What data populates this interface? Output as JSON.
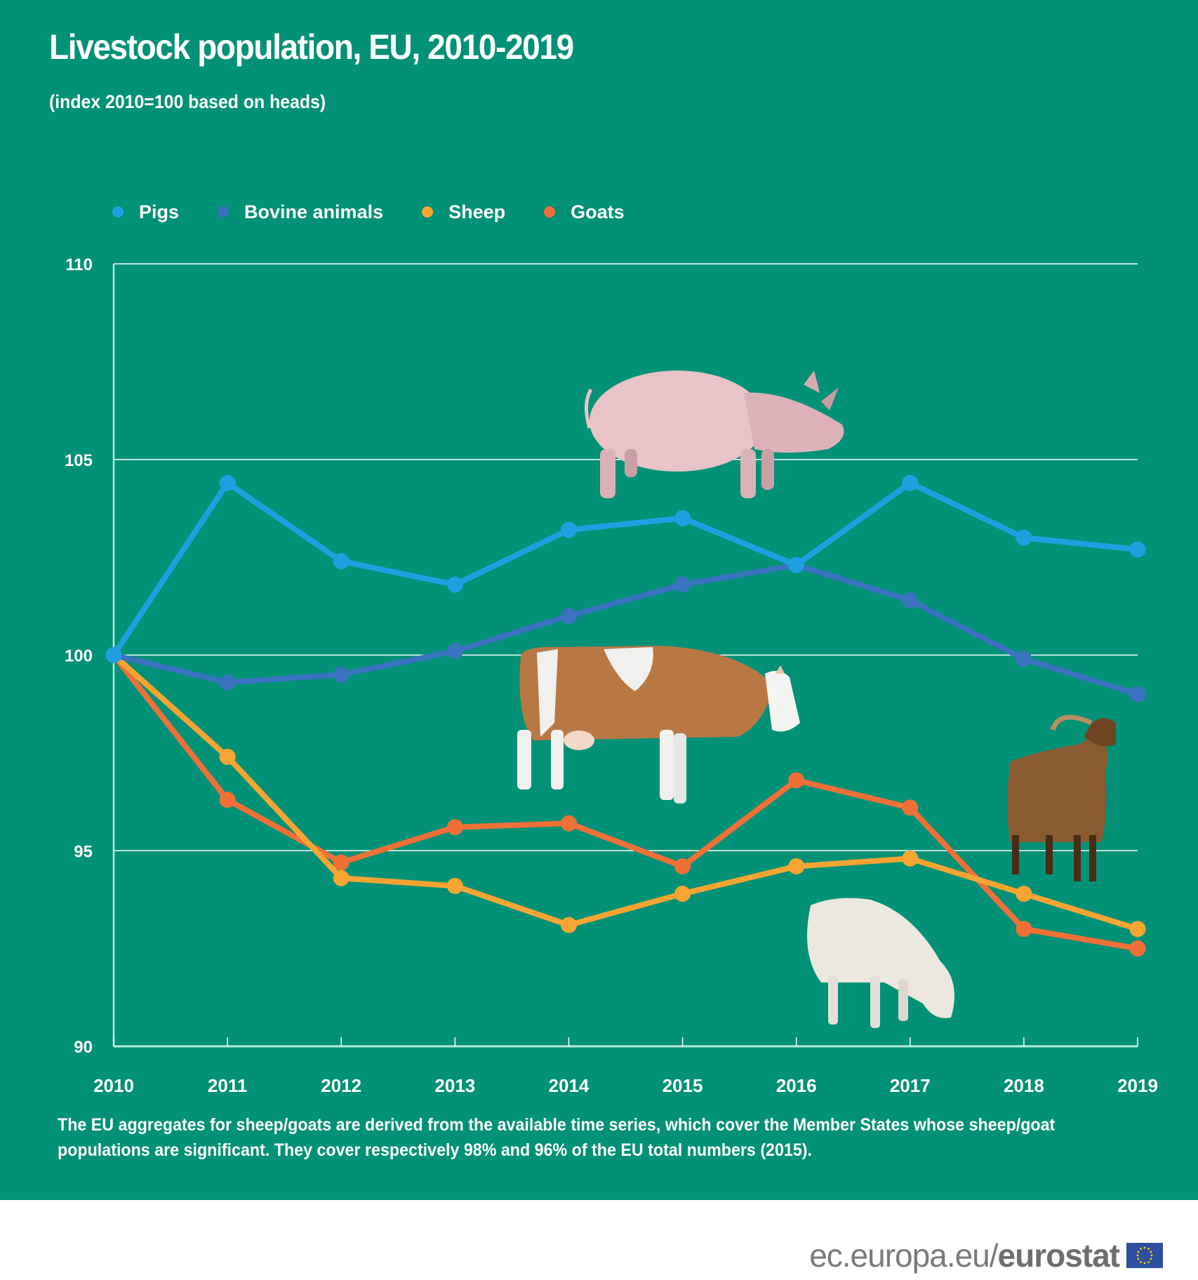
{
  "header": {
    "title": "Livestock population, EU, 2010-2019",
    "subtitle": "(index 2010=100 based on heads)"
  },
  "legend": [
    {
      "label": "Pigs",
      "color": "#1ea0e0"
    },
    {
      "label": "Bovine animals",
      "color": "#3a72c0"
    },
    {
      "label": "Sheep",
      "color": "#f9a533"
    },
    {
      "label": "Goats",
      "color": "#f07038"
    }
  ],
  "chart_data": {
    "type": "line",
    "title": "Livestock population, EU, 2010-2019",
    "subtitle": "(index 2010=100 based on heads)",
    "xlabel": "",
    "ylabel": "",
    "x": [
      "2010",
      "2011",
      "2012",
      "2013",
      "2014",
      "2015",
      "2016",
      "2017",
      "2018",
      "2019"
    ],
    "ylim": [
      90,
      110
    ],
    "yticks": [
      "90",
      "95",
      "100",
      "105",
      "110"
    ],
    "grid": true,
    "legend_position": "top-left",
    "series": [
      {
        "name": "Pigs",
        "color": "#1ea0e0",
        "values": [
          100,
          104.4,
          102.4,
          101.8,
          103.2,
          103.5,
          102.3,
          104.4,
          103.0,
          102.7
        ]
      },
      {
        "name": "Bovine animals",
        "color": "#3a72c0",
        "values": [
          100,
          99.3,
          99.5,
          100.1,
          101.0,
          101.8,
          102.3,
          101.4,
          99.9,
          99.0
        ]
      },
      {
        "name": "Sheep",
        "color": "#f9a533",
        "values": [
          100,
          97.4,
          94.3,
          94.1,
          93.1,
          93.9,
          94.6,
          94.8,
          93.9,
          93.0
        ]
      },
      {
        "name": "Goats",
        "color": "#f07038",
        "values": [
          100,
          96.3,
          94.7,
          95.6,
          95.7,
          94.6,
          96.8,
          96.1,
          93.0,
          92.5
        ]
      }
    ]
  },
  "illustrations": [
    "pig-illustration",
    "cow-illustration",
    "goat-illustration",
    "sheep-illustration"
  ],
  "footnote": "The EU aggregates for sheep/goats are derived from the available time series, which cover the Member States whose sheep/goat populations are significant. They cover respectively 98% and 96% of the EU total numbers (2015).",
  "footer": {
    "url_prefix": "ec.europa.eu/",
    "url_brand": "eurostat"
  },
  "colors": {
    "background": "#009176",
    "gridline": "#ffffff"
  }
}
